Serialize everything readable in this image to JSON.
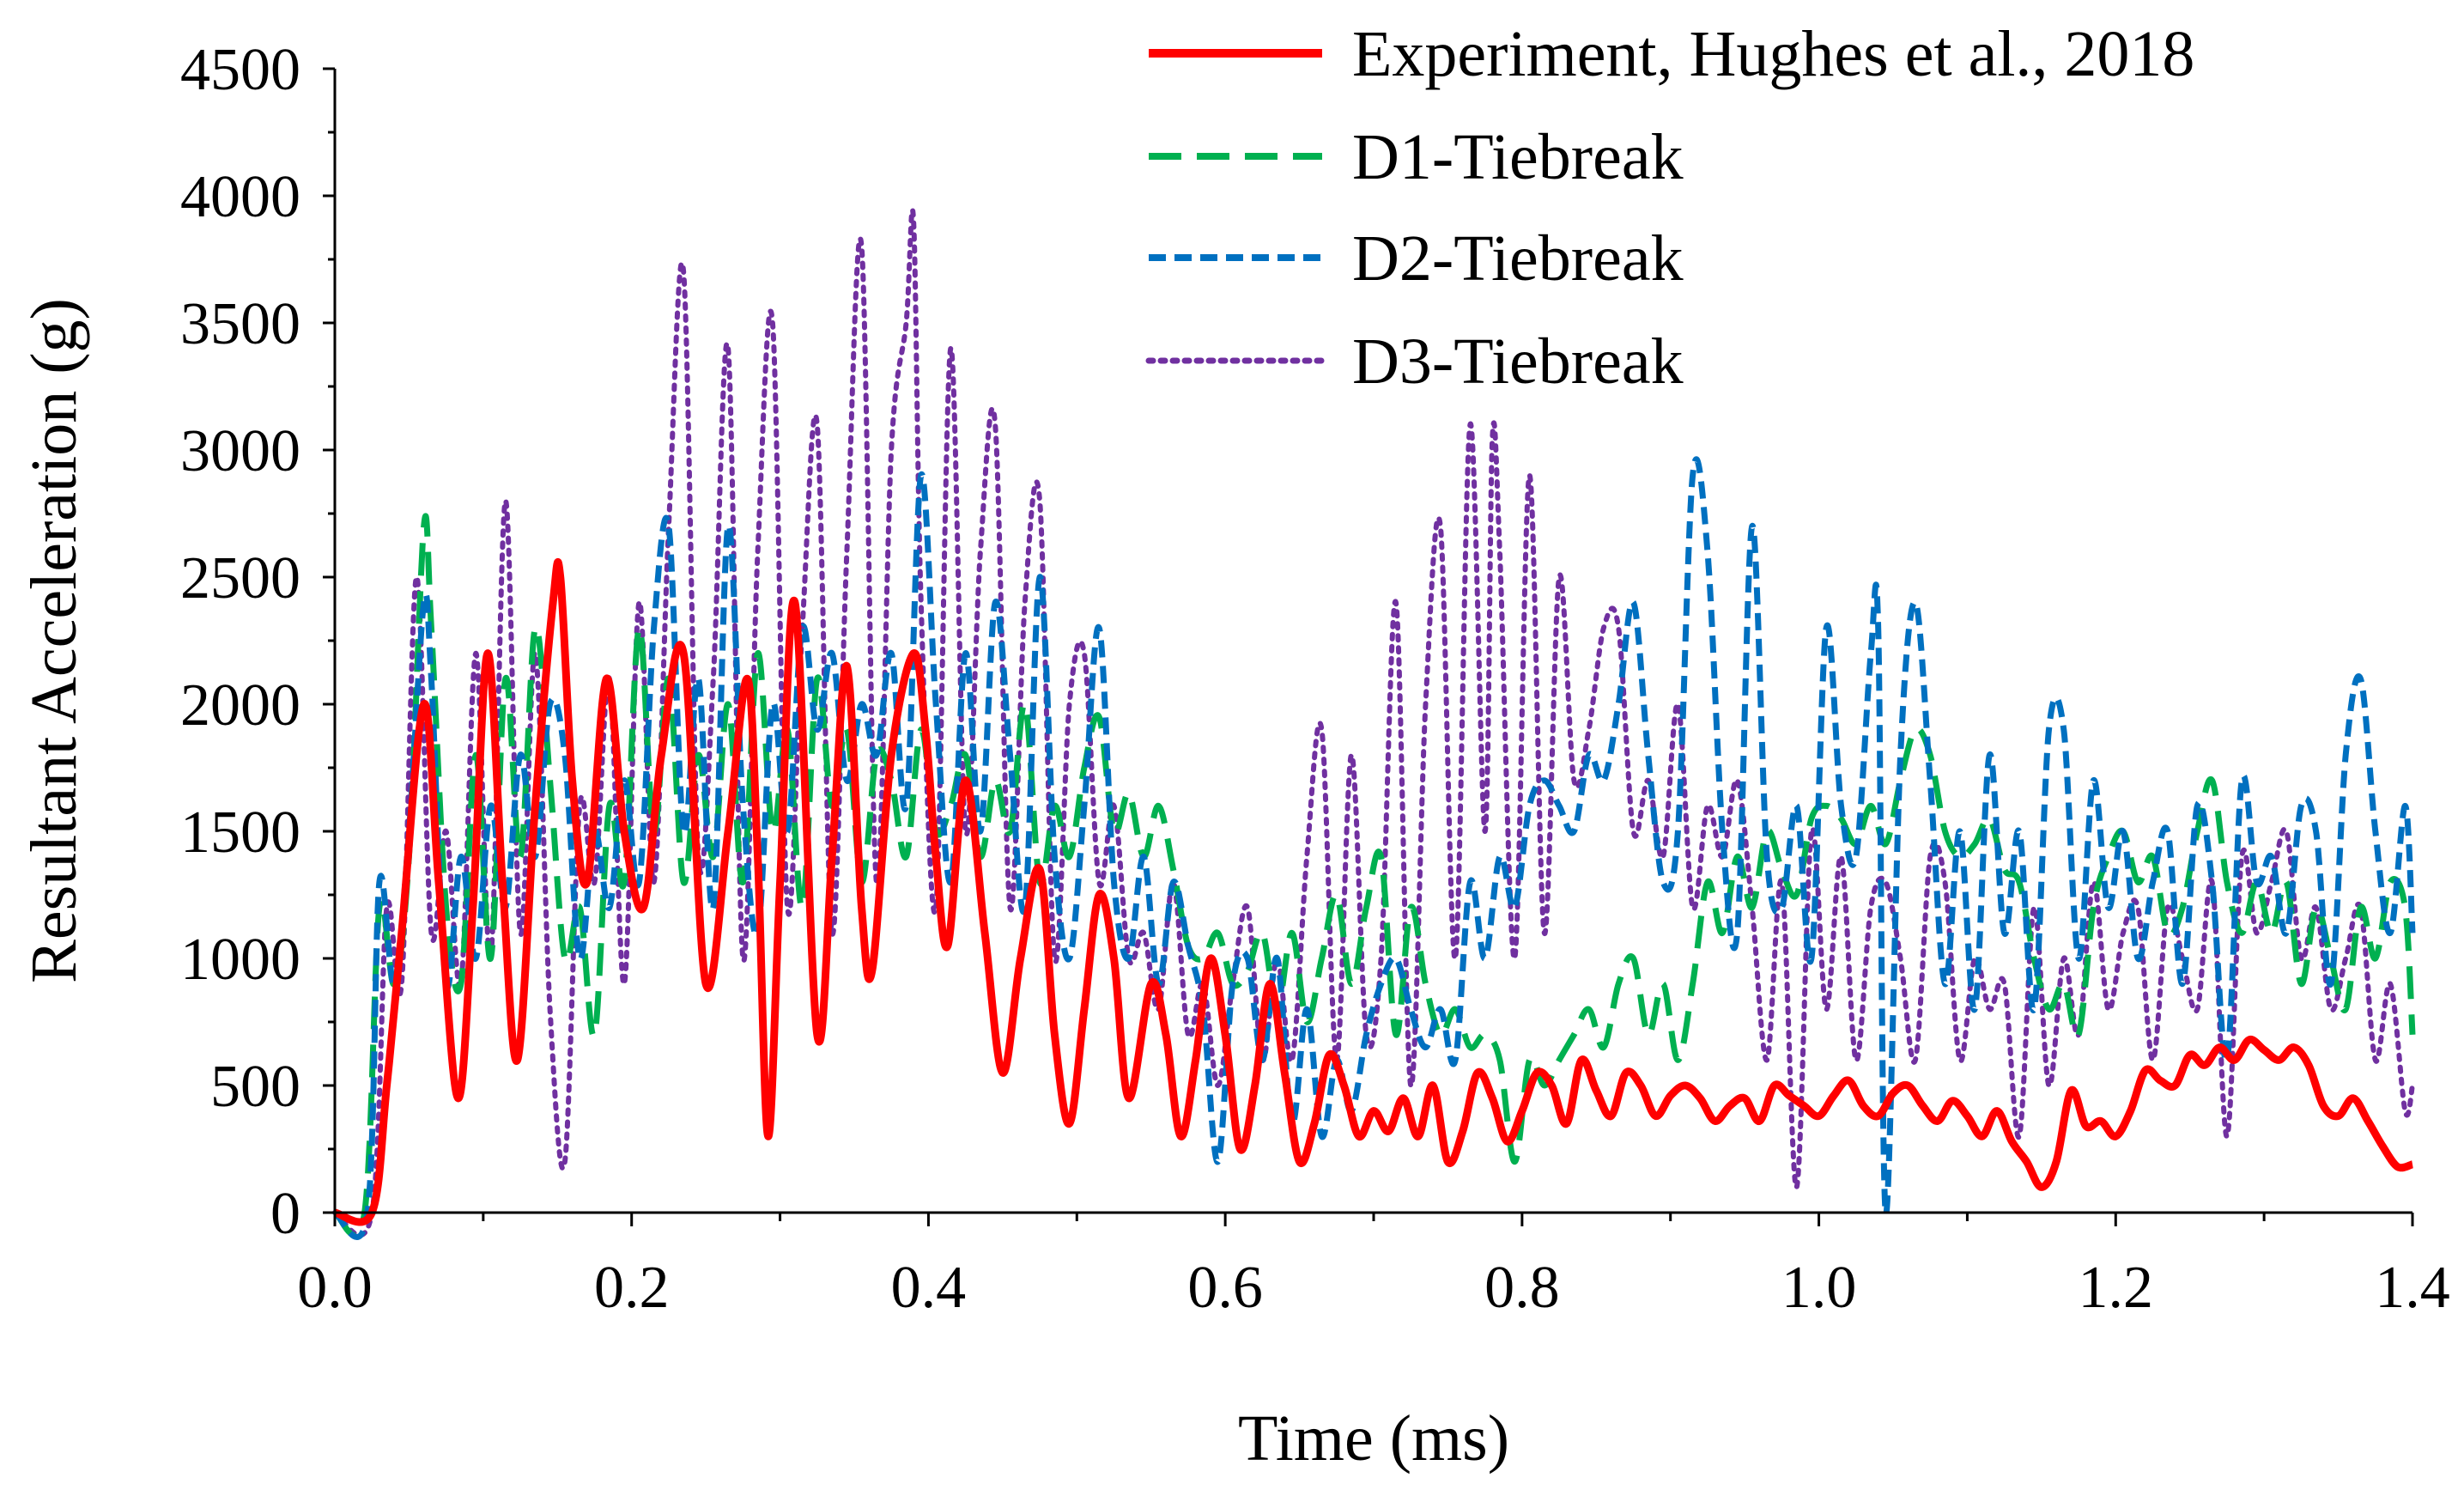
{
  "chart_data": {
    "type": "line",
    "title": "",
    "xlabel": "Time  (ms)",
    "ylabel": "Resultant Acceleration  (g)",
    "xlim": [
      0,
      1.4
    ],
    "ylim": [
      0,
      4500
    ],
    "xticks": [
      "0.0",
      "0.2",
      "0.4",
      "0.6",
      "0.8",
      "1.0",
      "1.2",
      "1.4"
    ],
    "yticks": [
      "0",
      "500",
      "1000",
      "1500",
      "2000",
      "2500",
      "3000",
      "3500",
      "4000",
      "4500"
    ],
    "legend_position": "top-right",
    "series": [
      {
        "name": "Experiment, Hughes et al., 2018",
        "color": "#ff0000",
        "style": "solid",
        "x": [
          0,
          0.025,
          0.035,
          0.045,
          0.06,
          0.07,
          0.083,
          0.093,
          0.103,
          0.113,
          0.123,
          0.135,
          0.147,
          0.152,
          0.16,
          0.17,
          0.183,
          0.195,
          0.208,
          0.22,
          0.235,
          0.25,
          0.265,
          0.278,
          0.285,
          0.292,
          0.3,
          0.31,
          0.325,
          0.335,
          0.345,
          0.355,
          0.362,
          0.375,
          0.39,
          0.398,
          0.405,
          0.413,
          0.425,
          0.438,
          0.45,
          0.462,
          0.475,
          0.485,
          0.495,
          0.505,
          0.515,
          0.525,
          0.535,
          0.55,
          0.56,
          0.57,
          0.58,
          0.59,
          0.6,
          0.61,
          0.62,
          0.63,
          0.64,
          0.65,
          0.66,
          0.67,
          0.68,
          0.69,
          0.7,
          0.71,
          0.72,
          0.73,
          0.74,
          0.75,
          0.76,
          0.77,
          0.78,
          0.79,
          0.8,
          0.81,
          0.82,
          0.83,
          0.84,
          0.85,
          0.86,
          0.87,
          0.88,
          0.89,
          0.9,
          0.91,
          0.92,
          0.93,
          0.94,
          0.95,
          0.96,
          0.97,
          0.98,
          0.99,
          1.0,
          1.01,
          1.02,
          1.03,
          1.04,
          1.05,
          1.06,
          1.07,
          1.08,
          1.09,
          1.1,
          1.11,
          1.12,
          1.13,
          1.14,
          1.15,
          1.16,
          1.17,
          1.18,
          1.19,
          1.2,
          1.21,
          1.22,
          1.23,
          1.24,
          1.25,
          1.26,
          1.27,
          1.28,
          1.29,
          1.3,
          1.31,
          1.32,
          1.33,
          1.34,
          1.35,
          1.36,
          1.37,
          1.38,
          1.39,
          1.4
        ],
        "y": [
          0,
          0,
          500,
          1100,
          2000,
          1300,
          450,
          1200,
          2200,
          1300,
          600,
          1600,
          2400,
          2500,
          1700,
          1300,
          2100,
          1500,
          1200,
          1800,
          2200,
          900,
          1500,
          2100,
          1400,
          300,
          1300,
          2400,
          700,
          1400,
          2150,
          1200,
          950,
          1800,
          2200,
          1900,
          1400,
          1050,
          1700,
          1100,
          550,
          1000,
          1350,
          700,
          350,
          800,
          1250,
          1000,
          450,
          900,
          700,
          300,
          600,
          1000,
          700,
          250,
          500,
          900,
          550,
          200,
          350,
          620,
          500,
          300,
          400,
          320,
          450,
          300,
          500,
          200,
          320,
          550,
          450,
          280,
          400,
          550,
          500,
          350,
          600,
          480,
          380,
          550,
          500,
          380,
          460,
          500,
          450,
          360,
          420,
          450,
          360,
          500,
          460,
          420,
          380,
          460,
          520,
          420,
          380,
          470,
          500,
          420,
          360,
          440,
          380,
          300,
          400,
          280,
          200,
          100,
          200,
          480,
          340,
          360,
          300,
          400,
          560,
          520,
          500,
          620,
          580,
          650,
          600,
          680,
          640,
          600,
          650,
          580,
          420,
          380,
          450,
          360,
          260,
          180,
          190
        ]
      },
      {
        "name": "D1-Tiebreak",
        "color": "#00b050",
        "style": "dash",
        "x": [
          0,
          0.02,
          0.03,
          0.04,
          0.05,
          0.06,
          0.065,
          0.075,
          0.085,
          0.095,
          0.105,
          0.115,
          0.125,
          0.135,
          0.145,
          0.155,
          0.165,
          0.175,
          0.185,
          0.195,
          0.205,
          0.215,
          0.225,
          0.235,
          0.245,
          0.255,
          0.265,
          0.275,
          0.285,
          0.295,
          0.305,
          0.315,
          0.325,
          0.335,
          0.345,
          0.355,
          0.365,
          0.375,
          0.385,
          0.395,
          0.405,
          0.415,
          0.425,
          0.435,
          0.445,
          0.455,
          0.465,
          0.475,
          0.485,
          0.495,
          0.505,
          0.515,
          0.525,
          0.535,
          0.545,
          0.555,
          0.565,
          0.575,
          0.585,
          0.595,
          0.605,
          0.615,
          0.625,
          0.635,
          0.645,
          0.655,
          0.665,
          0.675,
          0.685,
          0.695,
          0.705,
          0.715,
          0.725,
          0.735,
          0.745,
          0.755,
          0.765,
          0.775,
          0.785,
          0.795,
          0.805,
          0.815,
          0.825,
          0.835,
          0.845,
          0.855,
          0.865,
          0.875,
          0.885,
          0.895,
          0.905,
          0.915,
          0.925,
          0.935,
          0.945,
          0.955,
          0.965,
          0.975,
          0.985,
          0.995,
          1.005,
          1.015,
          1.025,
          1.035,
          1.045,
          1.055,
          1.065,
          1.075,
          1.085,
          1.095,
          1.105,
          1.115,
          1.125,
          1.135,
          1.145,
          1.155,
          1.165,
          1.175,
          1.185,
          1.195,
          1.205,
          1.215,
          1.225,
          1.235,
          1.245,
          1.255,
          1.265,
          1.275,
          1.285,
          1.295,
          1.305,
          1.315,
          1.325,
          1.335,
          1.345,
          1.355,
          1.365,
          1.375,
          1.385,
          1.395,
          1.4
        ],
        "y": [
          0,
          0,
          1200,
          900,
          1400,
          2700,
          2300,
          1200,
          900,
          1800,
          1000,
          2100,
          1400,
          2300,
          1700,
          1000,
          1200,
          700,
          1600,
          1300,
          2300,
          1500,
          2100,
          1300,
          1800,
          1400,
          2000,
          1300,
          2200,
          1500,
          1900,
          1200,
          2100,
          1600,
          1900,
          1300,
          1800,
          1700,
          1400,
          1900,
          1500,
          1600,
          1800,
          1400,
          1700,
          1500,
          2000,
          1300,
          1600,
          1400,
          1750,
          1950,
          1500,
          1650,
          1400,
          1600,
          1350,
          1050,
          1000,
          1100,
          900,
          950,
          1100,
          800,
          1100,
          750,
          1000,
          1250,
          900,
          1200,
          1400,
          700,
          1200,
          900,
          700,
          800,
          650,
          700,
          600,
          200,
          600,
          500,
          600,
          700,
          800,
          650,
          900,
          1000,
          700,
          900,
          600,
          900,
          1300,
          1100,
          1400,
          1200,
          1500,
          1350,
          1250,
          1550,
          1600,
          1550,
          1450,
          1600,
          1450,
          1700,
          1900,
          1800,
          1500,
          1400,
          1450,
          1550,
          1350,
          1300,
          1000,
          800,
          900,
          700,
          1200,
          1400,
          1500,
          1300,
          1400,
          1100,
          1200,
          1500,
          1700,
          1300,
          1100,
          1300,
          1100,
          1300,
          900,
          1200,
          1000,
          800,
          1200,
          1000,
          1300,
          1200,
          700
        ]
      },
      {
        "name": "D2-Tiebreak",
        "color": "#0070c0",
        "style": "short-dash",
        "x": [
          0,
          0.022,
          0.03,
          0.04,
          0.05,
          0.06,
          0.065,
          0.075,
          0.085,
          0.095,
          0.105,
          0.115,
          0.125,
          0.135,
          0.145,
          0.155,
          0.165,
          0.175,
          0.185,
          0.195,
          0.205,
          0.215,
          0.225,
          0.235,
          0.245,
          0.255,
          0.265,
          0.275,
          0.285,
          0.295,
          0.305,
          0.315,
          0.325,
          0.335,
          0.345,
          0.355,
          0.365,
          0.375,
          0.385,
          0.395,
          0.405,
          0.415,
          0.425,
          0.435,
          0.445,
          0.455,
          0.465,
          0.475,
          0.485,
          0.495,
          0.505,
          0.515,
          0.525,
          0.535,
          0.545,
          0.555,
          0.565,
          0.575,
          0.585,
          0.595,
          0.605,
          0.615,
          0.625,
          0.635,
          0.645,
          0.655,
          0.665,
          0.675,
          0.685,
          0.695,
          0.705,
          0.715,
          0.725,
          0.735,
          0.745,
          0.755,
          0.765,
          0.775,
          0.785,
          0.795,
          0.805,
          0.815,
          0.825,
          0.835,
          0.845,
          0.855,
          0.865,
          0.875,
          0.885,
          0.895,
          0.905,
          0.915,
          0.925,
          0.935,
          0.945,
          0.955,
          0.965,
          0.975,
          0.985,
          0.995,
          1.005,
          1.015,
          1.025,
          1.035,
          1.04,
          1.045,
          1.055,
          1.065,
          1.075,
          1.085,
          1.095,
          1.105,
          1.115,
          1.125,
          1.135,
          1.145,
          1.155,
          1.165,
          1.175,
          1.185,
          1.195,
          1.205,
          1.215,
          1.225,
          1.235,
          1.245,
          1.255,
          1.265,
          1.275,
          1.285,
          1.295,
          1.305,
          1.315,
          1.325,
          1.335,
          1.345,
          1.355,
          1.365,
          1.375,
          1.385,
          1.395,
          1.4
        ],
        "y": [
          0,
          0,
          1300,
          900,
          1500,
          2400,
          2100,
          900,
          1400,
          1000,
          1600,
          1200,
          1800,
          1400,
          2000,
          1800,
          1000,
          1500,
          1200,
          1700,
          1300,
          2300,
          2700,
          1500,
          2100,
          1200,
          2700,
          1600,
          1100,
          2000,
          1500,
          2300,
          1900,
          2200,
          1700,
          2000,
          1800,
          2200,
          1600,
          2900,
          2000,
          1300,
          2200,
          1500,
          2400,
          1800,
          1200,
          2500,
          1400,
          1000,
          1600,
          2300,
          1300,
          1000,
          1400,
          900,
          1300,
          1050,
          800,
          200,
          900,
          1000,
          600,
          1000,
          350,
          800,
          300,
          600,
          400,
          700,
          900,
          1000,
          800,
          650,
          800,
          600,
          1300,
          1000,
          1400,
          1200,
          1600,
          1700,
          1600,
          1500,
          1800,
          1700,
          2000,
          2400,
          1800,
          1300,
          1500,
          2900,
          2600,
          1500,
          1100,
          2700,
          1400,
          1200,
          1600,
          1000,
          2300,
          1600,
          1400,
          2200,
          2300,
          0,
          1800,
          2400,
          1700,
          900,
          1500,
          800,
          1800,
          1100,
          1500,
          800,
          1900,
          1900,
          1000,
          1700,
          1200,
          1500,
          1000,
          1300,
          1500,
          900,
          1600,
          1300,
          600,
          1700,
          1300,
          1400,
          1100,
          1600,
          1500,
          900,
          1800,
          2100,
          1500,
          1100,
          1600,
          1100
        ]
      },
      {
        "name": "D3-Tiebreak",
        "color": "#7030a0",
        "style": "dot",
        "x": [
          0,
          0.025,
          0.035,
          0.045,
          0.055,
          0.065,
          0.075,
          0.085,
          0.095,
          0.105,
          0.115,
          0.125,
          0.135,
          0.145,
          0.155,
          0.165,
          0.175,
          0.185,
          0.195,
          0.205,
          0.215,
          0.225,
          0.235,
          0.245,
          0.255,
          0.265,
          0.275,
          0.285,
          0.295,
          0.305,
          0.315,
          0.325,
          0.335,
          0.345,
          0.355,
          0.365,
          0.375,
          0.385,
          0.39,
          0.395,
          0.405,
          0.415,
          0.425,
          0.435,
          0.445,
          0.455,
          0.465,
          0.475,
          0.485,
          0.495,
          0.505,
          0.515,
          0.525,
          0.535,
          0.545,
          0.555,
          0.565,
          0.575,
          0.585,
          0.595,
          0.605,
          0.615,
          0.625,
          0.635,
          0.645,
          0.655,
          0.665,
          0.675,
          0.685,
          0.695,
          0.705,
          0.715,
          0.725,
          0.735,
          0.745,
          0.755,
          0.765,
          0.775,
          0.78,
          0.785,
          0.795,
          0.805,
          0.815,
          0.825,
          0.835,
          0.845,
          0.855,
          0.865,
          0.875,
          0.885,
          0.895,
          0.905,
          0.915,
          0.925,
          0.935,
          0.945,
          0.955,
          0.965,
          0.975,
          0.985,
          0.995,
          1.005,
          1.015,
          1.025,
          1.035,
          1.045,
          1.055,
          1.065,
          1.075,
          1.085,
          1.095,
          1.105,
          1.115,
          1.125,
          1.135,
          1.145,
          1.155,
          1.165,
          1.175,
          1.185,
          1.195,
          1.205,
          1.215,
          1.225,
          1.235,
          1.245,
          1.255,
          1.265,
          1.275,
          1.285,
          1.295,
          1.305,
          1.315,
          1.325,
          1.335,
          1.345,
          1.355,
          1.365,
          1.375,
          1.385,
          1.395,
          1.4
        ],
        "y": [
          0,
          0,
          1200,
          900,
          2500,
          1100,
          1500,
          900,
          2200,
          1000,
          2800,
          1100,
          2200,
          800,
          200,
          1600,
          1300,
          2100,
          900,
          2400,
          1300,
          2700,
          3700,
          1400,
          2100,
          3400,
          1000,
          2600,
          3500,
          1200,
          2300,
          3100,
          1100,
          2600,
          3800,
          1300,
          3000,
          3500,
          3900,
          2400,
          1200,
          3400,
          1500,
          2600,
          3100,
          1200,
          2400,
          2800,
          1000,
          2000,
          2200,
          1300,
          1600,
          1000,
          1100,
          800,
          1300,
          700,
          900,
          500,
          900,
          1200,
          600,
          1000,
          600,
          1400,
          1900,
          600,
          1800,
          700,
          1000,
          2400,
          500,
          2000,
          2700,
          1000,
          3100,
          1500,
          3050,
          2600,
          1000,
          2900,
          1100,
          2500,
          1700,
          1900,
          2300,
          2300,
          1500,
          1700,
          1400,
          2000,
          1200,
          1600,
          1400,
          1700,
          1200,
          600,
          1300,
          100,
          1500,
          800,
          1400,
          600,
          1200,
          1300,
          1000,
          600,
          1400,
          1300,
          600,
          1000,
          800,
          900,
          300,
          1200,
          500,
          1000,
          700,
          1300,
          800,
          1100,
          1200,
          600,
          1200,
          1000,
          800,
          1300,
          300,
          1400,
          1100,
          1300,
          1500,
          1000,
          1200,
          800,
          1000,
          1200,
          600,
          900,
          400,
          500
        ]
      }
    ]
  }
}
